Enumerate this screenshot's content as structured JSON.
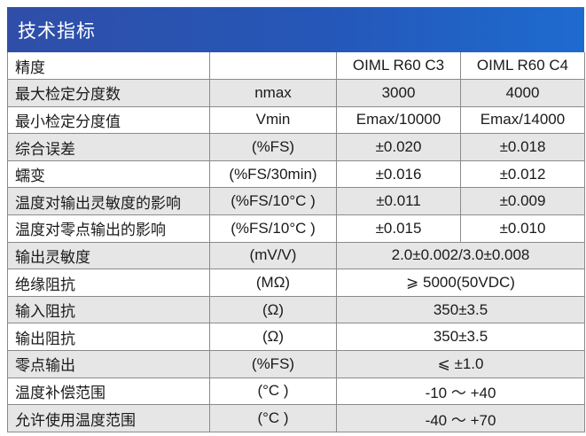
{
  "header": {
    "title": "技术指标"
  },
  "columns": {
    "c3": "OIML R60 C3",
    "c4": "OIML R60 C4"
  },
  "rows": [
    {
      "name": "精度",
      "unit": "",
      "c3": "OIML R60 C3",
      "c4": "OIML R60 C4"
    },
    {
      "name": "最大检定分度数",
      "unit": "nmax",
      "c3": "3000",
      "c4": "4000"
    },
    {
      "name": "最小检定分度值",
      "unit": "Vmin",
      "c3": "Emax/10000",
      "c4": "Emax/14000"
    },
    {
      "name": "综合误差",
      "unit": "(%FS)",
      "c3": "±0.020",
      "c4": "±0.018"
    },
    {
      "name": "蠕变",
      "unit": "(%FS/30min)",
      "c3": "±0.016",
      "c4": "±0.012"
    },
    {
      "name": "温度对输出灵敏度的影响",
      "unit": "(%FS/10°C )",
      "c3": "±0.011",
      "c4": "±0.009"
    },
    {
      "name": "温度对零点输出的影响",
      "unit": "(%FS/10°C )",
      "c3": "±0.015",
      "c4": "±0.010"
    },
    {
      "name": "输出灵敏度",
      "unit": "(mV/V)",
      "value": "2.0±0.002/3.0±0.008"
    },
    {
      "name": "绝缘阻抗",
      "unit": "(MΩ)",
      "value": "⩾ 5000(50VDC)"
    },
    {
      "name": "输入阻抗",
      "unit": "(Ω)",
      "value": "350±3.5"
    },
    {
      "name": "输出阻抗",
      "unit": "(Ω)",
      "value": "350±3.5"
    },
    {
      "name": "零点输出",
      "unit": "(%FS)",
      "value": "⩽ ±1.0"
    },
    {
      "name": "温度补偿范围",
      "unit": "(°C )",
      "value": "-10 ～ +40"
    },
    {
      "name": "允许使用温度范围",
      "unit": "(°C )",
      "value": "-40 ～ +70"
    }
  ]
}
